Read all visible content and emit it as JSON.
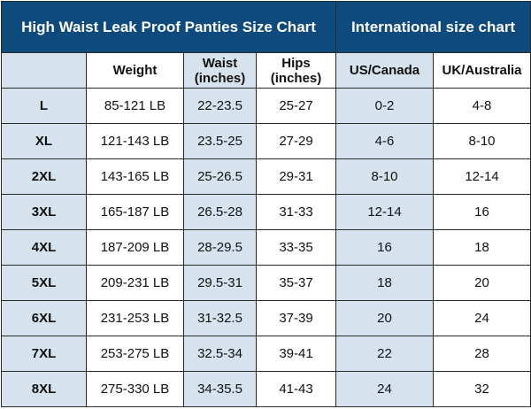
{
  "header": {
    "titles": [
      "High Waist Leak Proof Panties Size Chart",
      "International size chart"
    ]
  },
  "table": {
    "columns": [
      "Weight",
      "Waist (inches)",
      "Hips (inches)",
      "US/Canada",
      "UK/Australia"
    ],
    "rows": [
      [
        "L",
        "85-121 LB",
        "22-23.5",
        "25-27",
        "0-2",
        "4-8"
      ],
      [
        "XL",
        "121-143 LB",
        "23.5-25",
        "27-29",
        "4-6",
        "8-10"
      ],
      [
        "2XL",
        "143-165 LB",
        "25-26.5",
        "29-31",
        "8-10",
        "12-14"
      ],
      [
        "3XL",
        "165-187 LB",
        "26.5-28",
        "31-33",
        "12-14",
        "16"
      ],
      [
        "4XL",
        "187-209 LB",
        "28-29.5",
        "33-35",
        "16",
        "18"
      ],
      [
        "5XL",
        "209-231 LB",
        "29.5-31",
        "35-37",
        "18",
        "20"
      ],
      [
        "6XL",
        "231-253 LB",
        "31-32.5",
        "37-39",
        "20",
        "24"
      ],
      [
        "7XL",
        "253-275 LB",
        "32.5-34",
        "39-41",
        "22",
        "28"
      ],
      [
        "8XL",
        "275-330 LB",
        "34-35.5",
        "41-43",
        "24",
        "32"
      ]
    ]
  }
}
